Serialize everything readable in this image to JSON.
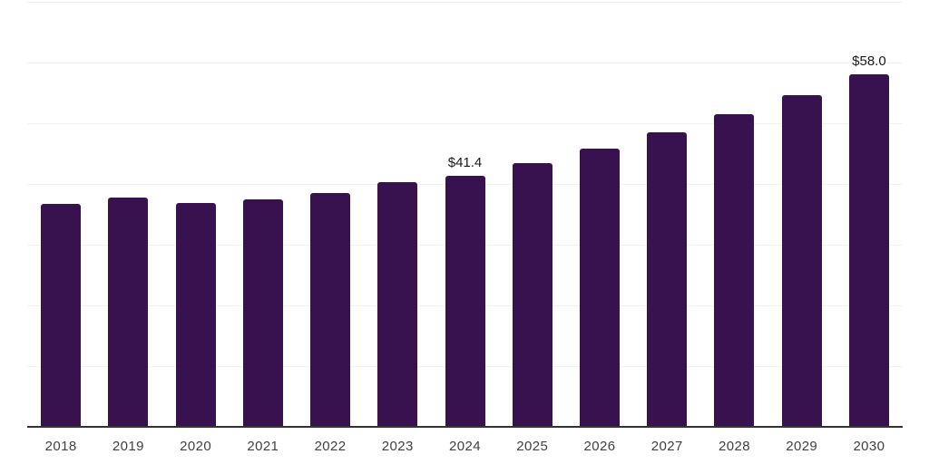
{
  "chart_data": {
    "type": "bar",
    "title": "",
    "xlabel": "",
    "ylabel": "",
    "categories": [
      "2018",
      "2019",
      "2020",
      "2021",
      "2022",
      "2023",
      "2024",
      "2025",
      "2026",
      "2027",
      "2028",
      "2029",
      "2030"
    ],
    "values": [
      36.7,
      37.8,
      36.9,
      37.5,
      38.5,
      40.3,
      41.4,
      43.4,
      45.8,
      48.5,
      51.5,
      54.6,
      58.0
    ],
    "point_labels": [
      "",
      "",
      "",
      "",
      "",
      "",
      "$41.4",
      "",
      "",
      "",
      "",
      "",
      "$58.0"
    ],
    "ylim": [
      0,
      70
    ],
    "gridline_step": 10,
    "grid": true,
    "legend": false,
    "colors": {
      "bar": "#38124e",
      "axis_line": "#333333",
      "gridline": "#f2f2f2",
      "point_label": "#1a1a1a",
      "tick_label": "#404040",
      "background": "#ffffff"
    }
  }
}
